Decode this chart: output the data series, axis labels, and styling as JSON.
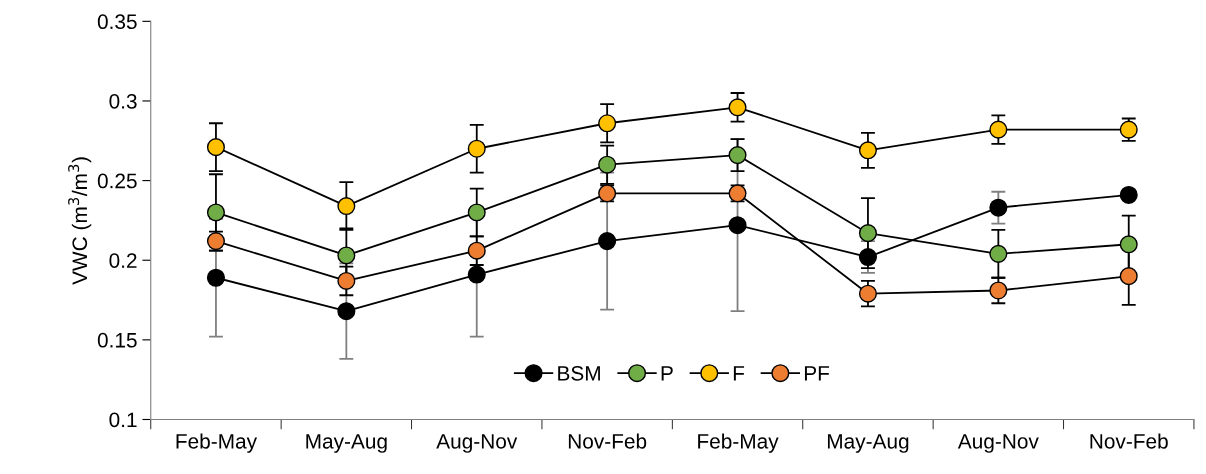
{
  "chart_data": {
    "type": "line",
    "ylabel": "VWC (m$^{3}$/m$^{3}$)",
    "categories": [
      "Feb-May",
      "May-Aug",
      "Aug-Nov",
      "Nov-Feb",
      "Feb-May",
      "May-Aug",
      "Aug-Nov",
      "Nov-Feb"
    ],
    "ylim": [
      0.1,
      0.35
    ],
    "yticks": [
      0.1,
      0.15,
      0.2,
      0.25,
      0.3,
      0.35
    ],
    "grid": false,
    "legend": "bottom",
    "marker": "circle",
    "line_style": "solid",
    "series": [
      {
        "name": "BSM",
        "color": "#000000",
        "values": [
          0.189,
          0.168,
          0.191,
          0.212,
          0.222,
          0.202,
          0.233,
          0.241
        ],
        "errors": [
          0.037,
          0.03,
          0.039,
          0.043,
          0.054,
          0.01,
          0.01,
          null
        ]
      },
      {
        "name": "P",
        "color": "#70ad47",
        "values": [
          0.23,
          0.203,
          0.23,
          0.26,
          0.266,
          0.217,
          0.204,
          0.21
        ],
        "errors": [
          0.024,
          0.017,
          0.015,
          0.012,
          0.01,
          0.022,
          0.015,
          0.018
        ]
      },
      {
        "name": "F",
        "color": "#ffc000",
        "values": [
          0.271,
          0.234,
          0.27,
          0.286,
          0.296,
          0.269,
          0.282,
          0.282
        ],
        "errors": [
          0.015,
          0.015,
          0.015,
          0.012,
          0.009,
          0.011,
          0.009,
          0.007
        ]
      },
      {
        "name": "PF",
        "color": "#ed7d31",
        "values": [
          0.212,
          0.187,
          0.206,
          0.242,
          0.242,
          0.179,
          0.181,
          0.19
        ],
        "errors": [
          0.006,
          0.009,
          0.009,
          0.005,
          0.005,
          0.008,
          0.008,
          0.018
        ]
      }
    ]
  }
}
